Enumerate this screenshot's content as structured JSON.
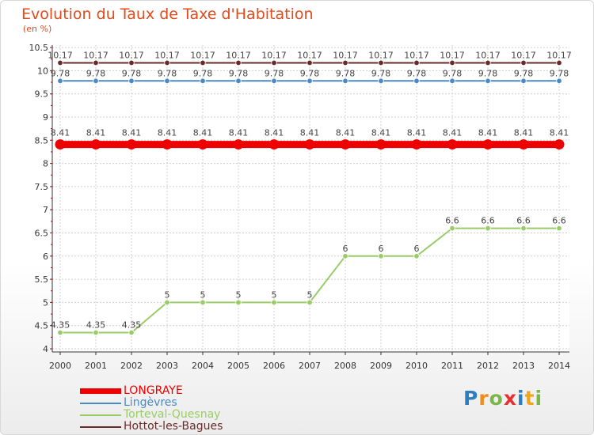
{
  "header": {
    "title": "Evolution du Taux de Taxe d'Habitation",
    "subtitle": "(en %)"
  },
  "chart_data": {
    "type": "line",
    "title": "Evolution du Taux de Taxe d'Habitation",
    "ylabel": "(en %)",
    "ylim": [
      4,
      10.5
    ],
    "yticks": [
      "4",
      "4.5",
      "5",
      "5.5",
      "6",
      "6.5",
      "7",
      "7.5",
      "8",
      "8.5",
      "9",
      "9.5",
      "10",
      "10.5"
    ],
    "x": [
      "2000",
      "2001",
      "2002",
      "2003",
      "2004",
      "2005",
      "2006",
      "2007",
      "2008",
      "2009",
      "2010",
      "2011",
      "2012",
      "2013",
      "2014"
    ],
    "legend_position": "bottom-left",
    "series": [
      {
        "name": "Hottot-les-Bagues",
        "color": "#6b2a2a",
        "values": [
          10.17,
          10.17,
          10.17,
          10.17,
          10.17,
          10.17,
          10.17,
          10.17,
          10.17,
          10.17,
          10.17,
          10.17,
          10.17,
          10.17,
          10.17
        ],
        "labels": [
          "10.17",
          "10.17",
          "10.17",
          "10.17",
          "10.17",
          "10.17",
          "10.17",
          "10.17",
          "10.17",
          "10.17",
          "10.17",
          "10.17",
          "10.17",
          "10.17",
          "10.17"
        ]
      },
      {
        "name": "Lingèvres",
        "color": "#4a8ac4",
        "values": [
          9.78,
          9.78,
          9.78,
          9.78,
          9.78,
          9.78,
          9.78,
          9.78,
          9.78,
          9.78,
          9.78,
          9.78,
          9.78,
          9.78,
          9.78
        ],
        "labels": [
          "9.78",
          "9.78",
          "9.78",
          "9.78",
          "9.78",
          "9.78",
          "9.78",
          "9.78",
          "9.78",
          "9.78",
          "9.78",
          "9.78",
          "9.78",
          "9.78",
          "9.78"
        ]
      },
      {
        "name": "LONGRAYE",
        "color": "#ee0000",
        "values": [
          8.41,
          8.41,
          8.41,
          8.41,
          8.41,
          8.41,
          8.41,
          8.41,
          8.41,
          8.41,
          8.41,
          8.41,
          8.41,
          8.41,
          8.41
        ],
        "labels": [
          "8.41",
          "8.41",
          "8.41",
          "8.41",
          "8.41",
          "8.41",
          "8.41",
          "8.41",
          "8.41",
          "8.41",
          "8.41",
          "8.41",
          "8.41",
          "8.41",
          "8.41"
        ]
      },
      {
        "name": "Torteval-Quesnay",
        "color": "#99cc66",
        "values": [
          4.35,
          4.35,
          4.35,
          5,
          5,
          5,
          5,
          5,
          6,
          6,
          6,
          6.6,
          6.6,
          6.6,
          6.6
        ],
        "labels": [
          "4.35",
          "4.35",
          "4.35",
          "5",
          "5",
          "5",
          "5",
          "5",
          "6",
          "6",
          "6",
          "6.6",
          "6.6",
          "6.6",
          "6.6"
        ]
      }
    ]
  },
  "legend": [
    {
      "name": "LONGRAYE",
      "color": "#ee0000"
    },
    {
      "name": "Lingèvres",
      "color": "#4a8ac4"
    },
    {
      "name": "Torteval-Quesnay",
      "color": "#99cc66"
    },
    {
      "name": "Hottot-les-Bagues",
      "color": "#6b2a2a"
    }
  ],
  "logo": {
    "letters": [
      "P",
      "r",
      "o",
      "x",
      "i",
      "t",
      "i"
    ],
    "colors": [
      "#2d7fc1",
      "#f08c1a",
      "#7ab648",
      "#e8312f",
      "#2d7fc1",
      "#f0a51a",
      "#7ab648"
    ]
  }
}
